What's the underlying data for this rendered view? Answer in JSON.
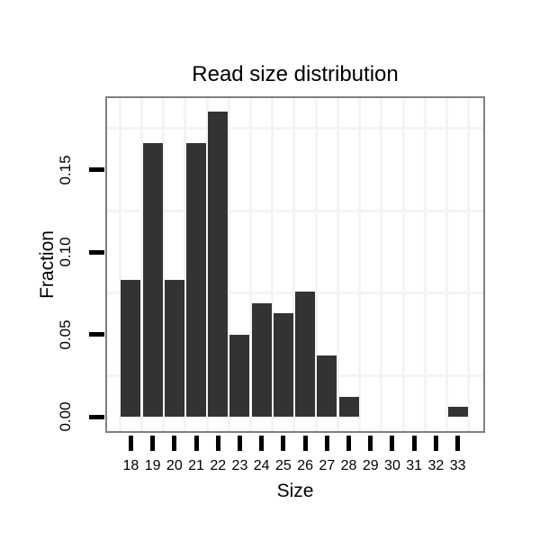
{
  "chart_data": {
    "type": "bar",
    "title": "Read size distribution",
    "xlabel": "Size",
    "ylabel": "Fraction",
    "categories": [
      18,
      19,
      20,
      21,
      22,
      23,
      24,
      25,
      26,
      27,
      28,
      29,
      30,
      31,
      32,
      33
    ],
    "values": [
      0.083,
      0.166,
      0.083,
      0.166,
      0.185,
      0.05,
      0.069,
      0.063,
      0.076,
      0.037,
      0.012,
      0,
      0,
      0,
      0,
      0.006
    ],
    "yticks": [
      0,
      0.05,
      0.1,
      0.15
    ],
    "ytick_labels": [
      "0.00",
      "0.05",
      "0.10",
      "0.15"
    ],
    "ylim": [
      -0.009,
      0.193
    ],
    "xlim": [
      16.9,
      34.2
    ],
    "grid": "minor gridlines only: vertical at half-integer x, horizontal at 0.025/0.075/0.125/0.175",
    "legend": "none",
    "bar_color": "#333333"
  },
  "colors": {
    "background": "#ffffff",
    "panel_background": "#ffffff",
    "panel_border": "#7f7f7f",
    "grid_minor": "#f4f4f4",
    "axis_tick": "#000000",
    "text": "#000000"
  }
}
